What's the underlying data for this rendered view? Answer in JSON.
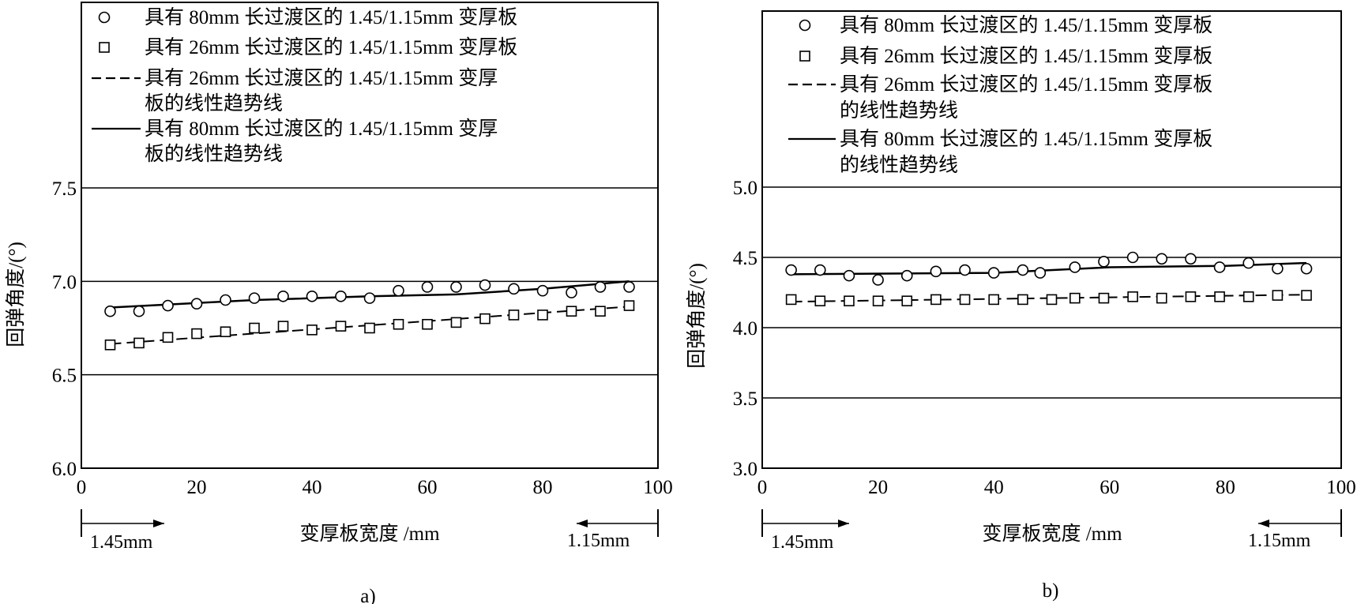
{
  "chart_data": [
    {
      "type": "scatter",
      "panel_label": "a)",
      "xlabel": "变厚板宽度 /mm",
      "ylabel": "回弹角度/(°)",
      "xlim": [
        0,
        100
      ],
      "ylim": [
        6.0,
        7.5
      ],
      "x_ticks": [
        "0",
        "20",
        "40",
        "60",
        "80",
        "100"
      ],
      "y_ticks": [
        "6.0",
        "6.5",
        "7.0",
        "7.5"
      ],
      "grid": "horizontal",
      "thickness_left": "1.45mm",
      "thickness_right": "1.15mm",
      "legend": {
        "placement": "top-left",
        "entries": [
          {
            "marker": "circle",
            "lines": [
              "具有 80mm 长过渡区的 1.45/1.15mm 变厚板"
            ]
          },
          {
            "marker": "square",
            "lines": [
              "具有 26mm 长过渡区的 1.45/1.15mm 变厚板"
            ]
          },
          {
            "marker": "dash",
            "lines": [
              "具有 26mm 长过渡区的 1.45/1.15mm 变厚",
              "板的线性趋势线"
            ]
          },
          {
            "marker": "solid",
            "lines": [
              "具有 80mm 长过渡区的 1.45/1.15mm 变厚",
              "板的线性趋势线"
            ]
          }
        ]
      },
      "series": [
        {
          "marker": "circle",
          "x": [
            5,
            10,
            15,
            20,
            25,
            30,
            35,
            40,
            45,
            50,
            55,
            60,
            65,
            70,
            75,
            80,
            85,
            90,
            95
          ],
          "y": [
            6.84,
            6.84,
            6.87,
            6.88,
            6.9,
            6.91,
            6.92,
            6.92,
            6.92,
            6.91,
            6.95,
            6.97,
            6.97,
            6.98,
            6.96,
            6.95,
            6.94,
            6.97,
            6.97
          ]
        },
        {
          "marker": "square",
          "x": [
            5,
            10,
            15,
            20,
            25,
            30,
            35,
            40,
            45,
            50,
            55,
            60,
            65,
            70,
            75,
            80,
            85,
            90,
            95
          ],
          "y": [
            6.66,
            6.67,
            6.7,
            6.72,
            6.73,
            6.75,
            6.76,
            6.74,
            6.76,
            6.75,
            6.77,
            6.77,
            6.78,
            6.8,
            6.82,
            6.82,
            6.84,
            6.84,
            6.87
          ]
        },
        {
          "marker": "dash",
          "x": [
            5,
            95
          ],
          "y": [
            6.665,
            6.865
          ]
        },
        {
          "marker": "solid",
          "x": [
            5,
            30,
            50,
            65,
            80,
            95
          ],
          "y": [
            6.86,
            6.9,
            6.92,
            6.93,
            6.96,
            7.0
          ]
        }
      ]
    },
    {
      "type": "scatter",
      "panel_label": "b)",
      "xlabel": "变厚板宽度 /mm",
      "ylabel": "回弹角度/(°)",
      "xlim": [
        0,
        100
      ],
      "ylim": [
        3.0,
        5.0
      ],
      "x_ticks": [
        "0",
        "20",
        "40",
        "60",
        "80",
        "100"
      ],
      "y_ticks": [
        "3.0",
        "3.5",
        "4.0",
        "4.5",
        "5.0"
      ],
      "grid": "horizontal",
      "thickness_left": "1.45mm",
      "thickness_right": "1.15mm",
      "legend": {
        "placement": "top-left",
        "entries": [
          {
            "marker": "circle",
            "lines": [
              "具有 80mm 长过渡区的 1.45/1.15mm 变厚板"
            ]
          },
          {
            "marker": "square",
            "lines": [
              "具有 26mm 长过渡区的 1.45/1.15mm 变厚板"
            ]
          },
          {
            "marker": "dash",
            "lines": [
              "具有 26mm 长过渡区的 1.45/1.15mm 变厚板",
              "的线性趋势线"
            ]
          },
          {
            "marker": "solid",
            "lines": [
              "具有 80mm 长过渡区的 1.45/1.15mm 变厚板",
              "的线性趋势线"
            ]
          }
        ]
      },
      "series": [
        {
          "marker": "circle",
          "x": [
            5,
            10,
            15,
            20,
            25,
            30,
            35,
            40,
            45,
            48,
            54,
            59,
            64,
            69,
            74,
            79,
            84,
            89,
            94
          ],
          "y": [
            4.41,
            4.41,
            4.37,
            4.34,
            4.37,
            4.4,
            4.41,
            4.39,
            4.41,
            4.39,
            4.43,
            4.47,
            4.5,
            4.49,
            4.49,
            4.43,
            4.46,
            4.42,
            4.42
          ]
        },
        {
          "marker": "square",
          "x": [
            5,
            10,
            15,
            20,
            25,
            30,
            35,
            40,
            45,
            50,
            54,
            59,
            64,
            69,
            74,
            79,
            84,
            89,
            94
          ],
          "y": [
            4.2,
            4.19,
            4.19,
            4.19,
            4.19,
            4.2,
            4.2,
            4.2,
            4.2,
            4.2,
            4.21,
            4.21,
            4.22,
            4.21,
            4.22,
            4.22,
            4.22,
            4.23,
            4.23
          ]
        },
        {
          "marker": "dash",
          "x": [
            5,
            94
          ],
          "y": [
            4.185,
            4.235
          ]
        },
        {
          "marker": "solid",
          "x": [
            5,
            40,
            60,
            80,
            94
          ],
          "y": [
            4.38,
            4.39,
            4.43,
            4.44,
            4.46
          ]
        }
      ]
    }
  ]
}
